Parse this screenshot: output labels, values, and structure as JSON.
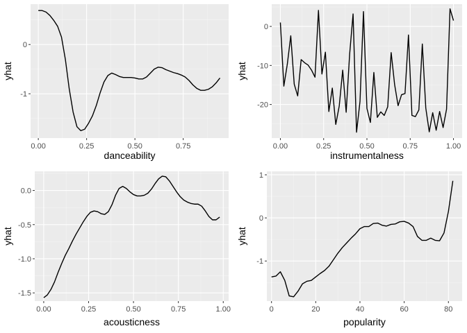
{
  "chart_data": [
    {
      "type": "line",
      "xlabel": "danceability",
      "ylabel": "yhat",
      "xlim": [
        -0.04,
        0.985
      ],
      "ylim": [
        -1.9,
        0.82
      ],
      "xticks": [
        0.0,
        0.25,
        0.5,
        0.75
      ],
      "xtick_labels": [
        "0.00",
        "0.25",
        "0.50",
        "0.75"
      ],
      "yticks": [
        0,
        -1
      ],
      "ytick_labels": [
        "0",
        "-1"
      ],
      "series": [
        {
          "x": [
            0.0,
            0.02,
            0.04,
            0.06,
            0.08,
            0.1,
            0.12,
            0.14,
            0.16,
            0.18,
            0.2,
            0.22,
            0.24,
            0.26,
            0.28,
            0.3,
            0.32,
            0.34,
            0.36,
            0.38,
            0.4,
            0.42,
            0.44,
            0.46,
            0.48,
            0.5,
            0.52,
            0.54,
            0.56,
            0.58,
            0.6,
            0.62,
            0.64,
            0.66,
            0.68,
            0.7,
            0.72,
            0.74,
            0.76,
            0.78,
            0.8,
            0.82,
            0.84,
            0.86,
            0.88,
            0.9,
            0.92,
            0.94
          ],
          "y": [
            0.69,
            0.69,
            0.66,
            0.59,
            0.49,
            0.37,
            0.15,
            -0.3,
            -0.9,
            -1.37,
            -1.67,
            -1.75,
            -1.72,
            -1.6,
            -1.45,
            -1.24,
            -0.98,
            -0.76,
            -0.63,
            -0.58,
            -0.61,
            -0.65,
            -0.67,
            -0.67,
            -0.67,
            -0.68,
            -0.7,
            -0.7,
            -0.66,
            -0.58,
            -0.5,
            -0.46,
            -0.47,
            -0.51,
            -0.54,
            -0.57,
            -0.59,
            -0.62,
            -0.66,
            -0.73,
            -0.82,
            -0.89,
            -0.93,
            -0.93,
            -0.91,
            -0.86,
            -0.78,
            -0.68
          ]
        }
      ]
    },
    {
      "type": "line",
      "xlabel": "instrumentalness",
      "ylabel": "yhat",
      "xlim": [
        -0.05,
        1.05
      ],
      "ylim": [
        -28.6,
        5.7
      ],
      "xticks": [
        0.0,
        0.25,
        0.5,
        0.75,
        1.0
      ],
      "xtick_labels": [
        "0.00",
        "0.25",
        "0.50",
        "0.75",
        "1.00"
      ],
      "yticks": [
        0,
        -10,
        -20
      ],
      "ytick_labels": [
        "0",
        "-10",
        "-20"
      ],
      "series": [
        {
          "x": [
            0.0,
            0.02,
            0.04,
            0.06,
            0.08,
            0.1,
            0.12,
            0.14,
            0.16,
            0.18,
            0.2,
            0.22,
            0.24,
            0.26,
            0.28,
            0.3,
            0.32,
            0.34,
            0.36,
            0.38,
            0.4,
            0.42,
            0.44,
            0.46,
            0.48,
            0.5,
            0.52,
            0.54,
            0.56,
            0.58,
            0.6,
            0.62,
            0.64,
            0.66,
            0.68,
            0.7,
            0.72,
            0.74,
            0.76,
            0.78,
            0.8,
            0.82,
            0.84,
            0.86,
            0.88,
            0.9,
            0.92,
            0.94,
            0.96,
            0.98,
            1.0
          ],
          "y": [
            1.0,
            -15.3,
            -9.7,
            -2.4,
            -14.8,
            -17.8,
            -8.5,
            -9.3,
            -9.9,
            -11.2,
            -13.0,
            4.1,
            -12.2,
            -6.6,
            -21.8,
            -15.8,
            -25.1,
            -20.4,
            -11.2,
            -22.0,
            -7.2,
            3.2,
            -27.1,
            -19.2,
            3.8,
            -21.0,
            -24.6,
            -11.8,
            -23.3,
            -21.9,
            -22.8,
            -20.6,
            -6.7,
            -14.9,
            -20.3,
            -17.5,
            -17.2,
            -2.2,
            -22.8,
            -23.1,
            -21.4,
            -4.5,
            -20.9,
            -27.0,
            -22.1,
            -26.6,
            -21.8,
            -25.9,
            -21.2,
            4.5,
            1.5
          ]
        }
      ]
    },
    {
      "type": "line",
      "xlabel": "acousticness",
      "ylabel": "yhat",
      "xlim": [
        -0.05,
        1.03
      ],
      "ylim": [
        -1.62,
        0.28
      ],
      "xticks": [
        0.0,
        0.25,
        0.5,
        0.75,
        1.0
      ],
      "xtick_labels": [
        "0.00",
        "0.25",
        "0.50",
        "0.75",
        "1.00"
      ],
      "yticks": [
        0.0,
        -0.5,
        -1.0,
        -1.5
      ],
      "ytick_labels": [
        "0.0",
        "-0.5",
        "-1.0",
        "-1.5"
      ],
      "series": [
        {
          "x": [
            0.0,
            0.02,
            0.04,
            0.06,
            0.08,
            0.1,
            0.12,
            0.14,
            0.16,
            0.18,
            0.2,
            0.22,
            0.24,
            0.26,
            0.28,
            0.3,
            0.32,
            0.34,
            0.36,
            0.38,
            0.4,
            0.42,
            0.44,
            0.46,
            0.48,
            0.5,
            0.52,
            0.54,
            0.56,
            0.58,
            0.6,
            0.62,
            0.64,
            0.66,
            0.68,
            0.7,
            0.72,
            0.74,
            0.76,
            0.78,
            0.8,
            0.82,
            0.84,
            0.86,
            0.88,
            0.9,
            0.92,
            0.94,
            0.96,
            0.98
          ],
          "y": [
            -1.57,
            -1.53,
            -1.45,
            -1.34,
            -1.2,
            -1.07,
            -0.95,
            -0.85,
            -0.74,
            -0.64,
            -0.55,
            -0.46,
            -0.38,
            -0.32,
            -0.3,
            -0.31,
            -0.34,
            -0.35,
            -0.31,
            -0.21,
            -0.07,
            0.03,
            0.06,
            0.03,
            -0.02,
            -0.06,
            -0.08,
            -0.08,
            -0.07,
            -0.04,
            0.02,
            0.1,
            0.17,
            0.21,
            0.2,
            0.14,
            0.06,
            -0.02,
            -0.09,
            -0.14,
            -0.17,
            -0.19,
            -0.2,
            -0.2,
            -0.23,
            -0.3,
            -0.38,
            -0.43,
            -0.43,
            -0.39
          ]
        }
      ]
    },
    {
      "type": "line",
      "xlabel": "popularity",
      "ylabel": "yhat",
      "xlim": [
        -2.1,
        86.2
      ],
      "ylim": [
        -1.93,
        1.08
      ],
      "xticks": [
        0,
        20,
        40,
        60,
        80
      ],
      "xtick_labels": [
        "0",
        "20",
        "40",
        "60",
        "80"
      ],
      "yticks": [
        1,
        0,
        -1
      ],
      "ytick_labels": [
        "1",
        "0",
        "-1"
      ],
      "series": [
        {
          "x": [
            0,
            2,
            4,
            6,
            8,
            10,
            12,
            14,
            16,
            18,
            20,
            22,
            24,
            26,
            28,
            30,
            32,
            34,
            36,
            38,
            40,
            42,
            44,
            46,
            48,
            50,
            52,
            54,
            56,
            58,
            60,
            62,
            64,
            66,
            68,
            70,
            72,
            74,
            76,
            78,
            80,
            82
          ],
          "y": [
            -1.37,
            -1.35,
            -1.25,
            -1.45,
            -1.81,
            -1.83,
            -1.7,
            -1.53,
            -1.47,
            -1.45,
            -1.37,
            -1.29,
            -1.22,
            -1.12,
            -0.97,
            -0.82,
            -0.69,
            -0.58,
            -0.47,
            -0.37,
            -0.25,
            -0.2,
            -0.2,
            -0.13,
            -0.12,
            -0.17,
            -0.19,
            -0.15,
            -0.14,
            -0.09,
            -0.08,
            -0.12,
            -0.2,
            -0.43,
            -0.52,
            -0.52,
            -0.47,
            -0.52,
            -0.53,
            -0.35,
            0.15,
            0.86
          ]
        }
      ]
    }
  ]
}
